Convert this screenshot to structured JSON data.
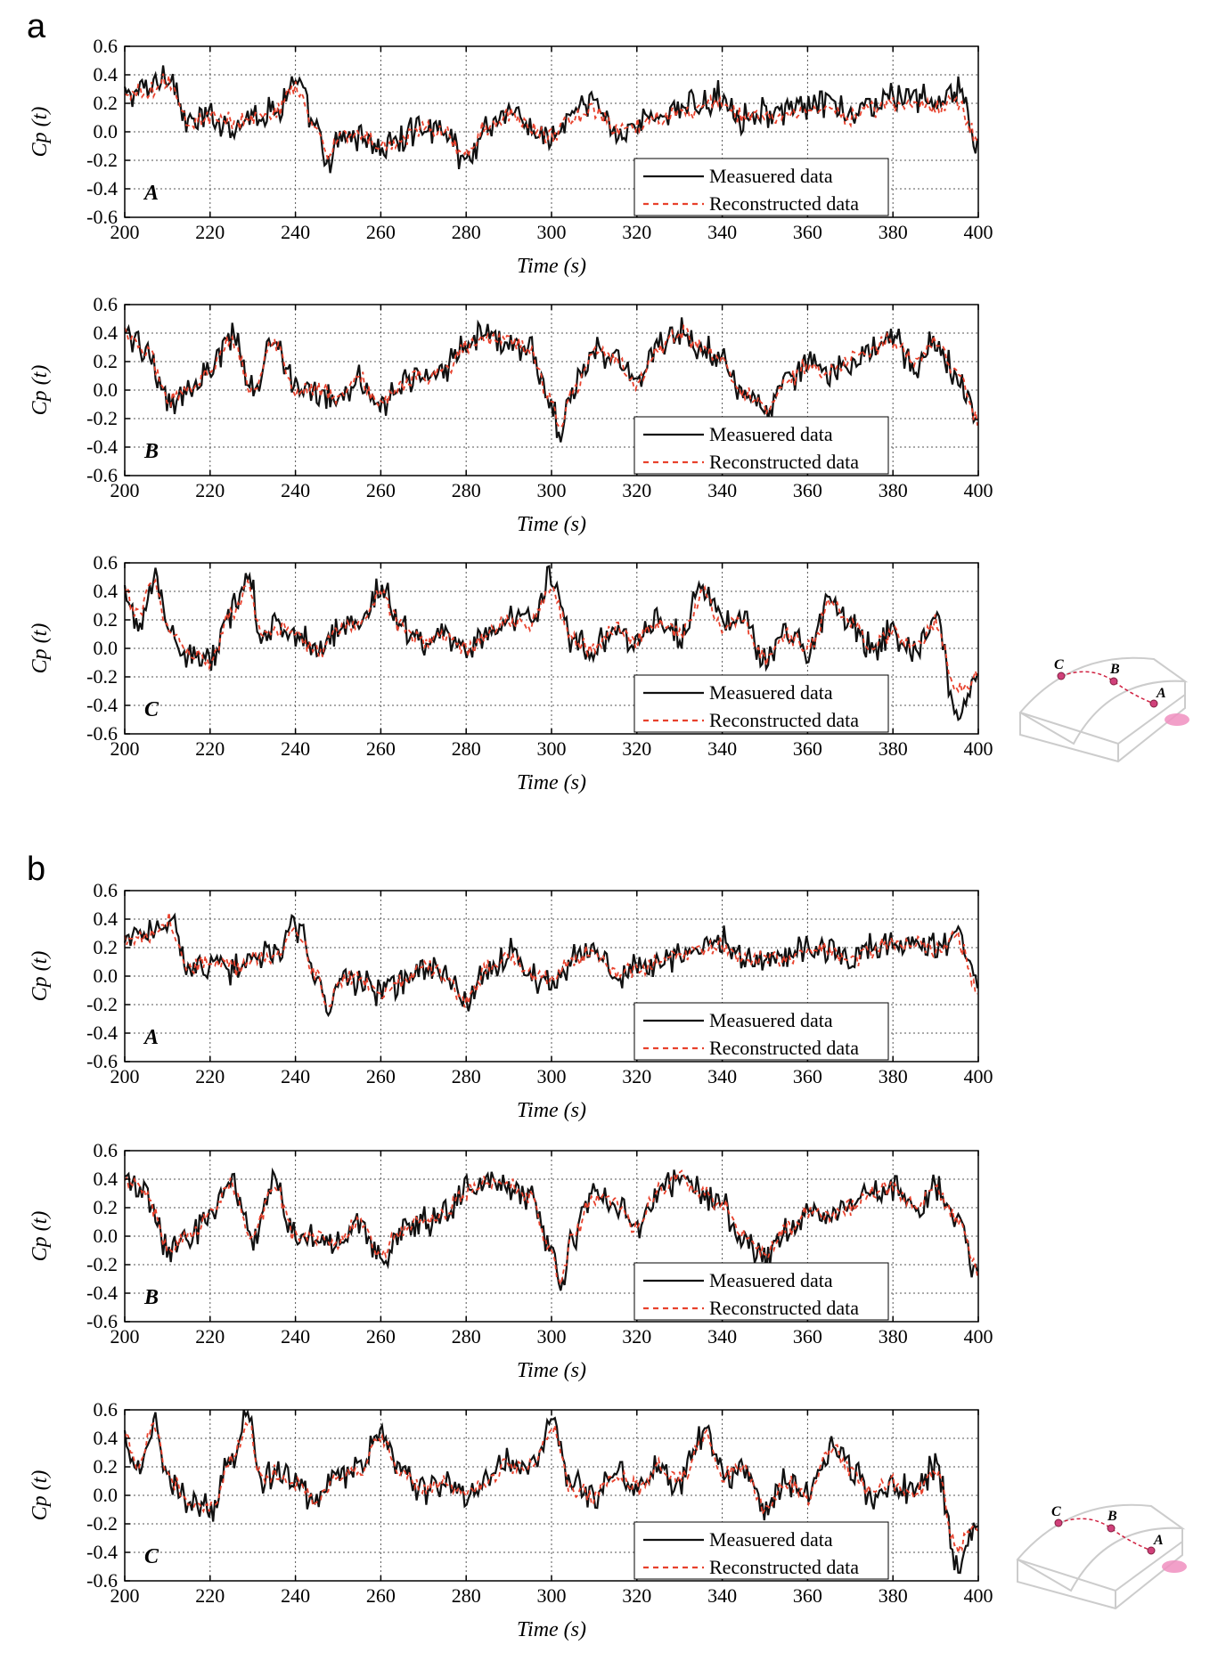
{
  "figure": {
    "panels": [
      "a",
      "b"
    ],
    "inset": {
      "points": [
        "C",
        "B",
        "A"
      ]
    }
  },
  "colors": {
    "measured": "#111111",
    "reconstructed": "#e8412c",
    "grid": "#555555",
    "inset_points": "#d0407a",
    "inset_wind": "#f08fc0"
  },
  "chart_data": [
    {
      "type": "line",
      "panel": "a",
      "subplot_label": "A",
      "xlabel": "Time (s)",
      "ylabel": "Cp (t)",
      "xlim": [
        200,
        400
      ],
      "ylim": [
        -0.6,
        0.6
      ],
      "xticks": [
        200,
        220,
        240,
        260,
        280,
        300,
        320,
        340,
        360,
        380,
        400
      ],
      "yticks": [
        "0.6",
        "0.4",
        "0.2",
        "0.0",
        "-0.2",
        "-0.4",
        "-0.6"
      ],
      "grid": true,
      "legend_position": "bottom-right",
      "x": [
        200,
        205,
        210,
        215,
        220,
        225,
        230,
        235,
        240,
        245,
        248,
        250,
        255,
        260,
        265,
        270,
        275,
        280,
        285,
        290,
        295,
        300,
        305,
        310,
        315,
        320,
        325,
        330,
        335,
        340,
        345,
        350,
        355,
        360,
        365,
        370,
        375,
        380,
        385,
        390,
        395,
        400
      ],
      "series": [
        {
          "name": "Measuered data",
          "style": "solid",
          "values": [
            0.25,
            0.3,
            0.42,
            0.05,
            0.1,
            0.05,
            0.12,
            0.15,
            0.35,
            0.0,
            -0.28,
            -0.05,
            -0.02,
            -0.12,
            -0.05,
            0.05,
            0.0,
            -0.2,
            0.05,
            0.15,
            0.02,
            -0.05,
            0.12,
            0.2,
            0.0,
            0.05,
            0.12,
            0.15,
            0.2,
            0.25,
            0.1,
            0.15,
            0.12,
            0.18,
            0.2,
            0.1,
            0.2,
            0.25,
            0.25,
            0.2,
            0.3,
            -0.1
          ]
        },
        {
          "name": "Reconstructed data",
          "style": "dashed",
          "values": [
            0.25,
            0.28,
            0.36,
            0.07,
            0.1,
            0.07,
            0.1,
            0.14,
            0.3,
            0.02,
            -0.18,
            -0.03,
            -0.01,
            -0.1,
            -0.04,
            0.04,
            0.0,
            -0.16,
            0.04,
            0.12,
            0.03,
            -0.03,
            0.1,
            0.16,
            0.02,
            0.05,
            0.1,
            0.13,
            0.17,
            0.2,
            0.1,
            0.13,
            0.11,
            0.15,
            0.16,
            0.1,
            0.16,
            0.2,
            0.2,
            0.17,
            0.22,
            -0.05
          ]
        }
      ]
    },
    {
      "type": "line",
      "panel": "a",
      "subplot_label": "B",
      "xlabel": "Time (s)",
      "ylabel": "Cp (t)",
      "xlim": [
        200,
        400
      ],
      "ylim": [
        -0.6,
        0.6
      ],
      "xticks": [
        200,
        220,
        240,
        260,
        280,
        300,
        320,
        340,
        360,
        380,
        400
      ],
      "yticks": [
        "0.6",
        "0.4",
        "0.2",
        "0.0",
        "-0.2",
        "-0.4",
        "-0.6"
      ],
      "grid": true,
      "legend_position": "bottom-right",
      "x": [
        200,
        205,
        210,
        215,
        220,
        225,
        230,
        235,
        240,
        245,
        250,
        255,
        260,
        265,
        270,
        275,
        280,
        285,
        290,
        295,
        300,
        302,
        305,
        310,
        315,
        320,
        325,
        330,
        335,
        340,
        345,
        350,
        355,
        360,
        365,
        370,
        375,
        380,
        385,
        390,
        395,
        400
      ],
      "series": [
        {
          "name": "Measuered data",
          "style": "solid",
          "values": [
            0.4,
            0.3,
            -0.1,
            0.0,
            0.15,
            0.38,
            0.0,
            0.38,
            0.0,
            0.0,
            -0.05,
            0.1,
            -0.15,
            0.05,
            0.1,
            0.15,
            0.32,
            0.38,
            0.35,
            0.28,
            -0.1,
            -0.35,
            0.0,
            0.3,
            0.22,
            0.05,
            0.32,
            0.42,
            0.3,
            0.2,
            0.0,
            -0.15,
            0.05,
            0.18,
            0.12,
            0.2,
            0.3,
            0.35,
            0.15,
            0.35,
            0.1,
            -0.25
          ]
        },
        {
          "name": "Reconstructed data",
          "style": "dashed",
          "values": [
            0.4,
            0.3,
            -0.08,
            0.0,
            0.14,
            0.34,
            0.0,
            0.34,
            0.0,
            0.0,
            -0.04,
            0.09,
            -0.12,
            0.05,
            0.09,
            0.14,
            0.3,
            0.38,
            0.34,
            0.27,
            -0.08,
            -0.3,
            0.0,
            0.28,
            0.22,
            0.05,
            0.3,
            0.4,
            0.3,
            0.2,
            0.0,
            -0.12,
            0.05,
            0.17,
            0.12,
            0.2,
            0.28,
            0.34,
            0.2,
            0.33,
            0.12,
            -0.22
          ]
        }
      ]
    },
    {
      "type": "line",
      "panel": "a",
      "subplot_label": "C",
      "xlabel": "Time (s)",
      "ylabel": "Cp (t)",
      "xlim": [
        200,
        400
      ],
      "ylim": [
        -0.6,
        0.6
      ],
      "xticks": [
        200,
        220,
        240,
        260,
        280,
        300,
        320,
        340,
        360,
        380,
        400
      ],
      "yticks": [
        "0.6",
        "0.4",
        "0.2",
        "0.0",
        "-0.2",
        "-0.4",
        "-0.6"
      ],
      "grid": true,
      "legend_position": "bottom-right",
      "x": [
        200,
        203,
        207,
        210,
        215,
        220,
        225,
        229,
        232,
        235,
        240,
        245,
        250,
        255,
        260,
        265,
        270,
        275,
        280,
        285,
        290,
        295,
        300,
        305,
        310,
        315,
        320,
        325,
        330,
        336,
        340,
        345,
        350,
        355,
        360,
        366,
        370,
        375,
        380,
        385,
        390,
        395,
        400
      ],
      "series": [
        {
          "name": "Measuered data",
          "style": "solid",
          "values": [
            0.4,
            0.2,
            0.48,
            0.15,
            -0.05,
            -0.1,
            0.25,
            0.55,
            0.1,
            0.15,
            0.1,
            -0.05,
            0.15,
            0.2,
            0.42,
            0.15,
            0.05,
            0.1,
            0.0,
            0.1,
            0.22,
            0.2,
            0.5,
            0.05,
            0.0,
            0.15,
            0.05,
            0.2,
            0.1,
            0.45,
            0.15,
            0.2,
            -0.1,
            0.1,
            0.0,
            0.35,
            0.2,
            0.0,
            0.1,
            0.0,
            0.2,
            -0.45,
            -0.2
          ]
        },
        {
          "name": "Reconstructed data",
          "style": "dashed",
          "values": [
            0.38,
            0.25,
            0.44,
            0.15,
            -0.04,
            -0.08,
            0.22,
            0.45,
            0.1,
            0.14,
            0.1,
            -0.03,
            0.13,
            0.18,
            0.38,
            0.14,
            0.05,
            0.1,
            0.0,
            0.09,
            0.2,
            0.19,
            0.42,
            0.05,
            0.01,
            0.14,
            0.05,
            0.18,
            0.1,
            0.38,
            0.15,
            0.18,
            -0.08,
            0.1,
            0.01,
            0.33,
            0.18,
            0.02,
            0.1,
            0.01,
            0.18,
            -0.3,
            -0.18
          ]
        }
      ]
    },
    {
      "type": "line",
      "panel": "b",
      "subplot_label": "A",
      "xlabel": "Time (s)",
      "ylabel": "Cp (t)",
      "xlim": [
        200,
        400
      ],
      "ylim": [
        -0.6,
        0.6
      ],
      "xticks": [
        200,
        220,
        240,
        260,
        280,
        300,
        320,
        340,
        360,
        380,
        400
      ],
      "yticks": [
        "0.6",
        "0.4",
        "0.2",
        "0.0",
        "-0.2",
        "-0.4",
        "-0.6"
      ],
      "grid": true,
      "legend_position": "bottom-right",
      "x": [
        200,
        205,
        210,
        215,
        220,
        225,
        230,
        235,
        240,
        245,
        248,
        250,
        255,
        260,
        265,
        270,
        275,
        280,
        285,
        290,
        295,
        300,
        305,
        310,
        315,
        320,
        325,
        330,
        335,
        340,
        345,
        350,
        355,
        360,
        365,
        370,
        375,
        380,
        385,
        390,
        395,
        400
      ],
      "series": [
        {
          "name": "Measuered data",
          "style": "solid",
          "values": [
            0.25,
            0.3,
            0.42,
            0.05,
            0.1,
            0.05,
            0.12,
            0.15,
            0.35,
            0.0,
            -0.28,
            -0.05,
            -0.02,
            -0.12,
            -0.05,
            0.05,
            0.0,
            -0.2,
            0.05,
            0.15,
            0.02,
            -0.05,
            0.12,
            0.2,
            0.0,
            0.05,
            0.12,
            0.15,
            0.2,
            0.25,
            0.1,
            0.15,
            0.12,
            0.18,
            0.2,
            0.1,
            0.2,
            0.25,
            0.25,
            0.2,
            0.3,
            -0.1
          ]
        },
        {
          "name": "Reconstructed data",
          "style": "dashed",
          "values": [
            0.26,
            0.29,
            0.39,
            0.06,
            0.1,
            0.06,
            0.11,
            0.15,
            0.33,
            0.01,
            -0.22,
            -0.04,
            -0.02,
            -0.11,
            -0.05,
            0.05,
            0.0,
            -0.18,
            0.05,
            0.14,
            0.02,
            -0.04,
            0.11,
            0.18,
            0.01,
            0.05,
            0.11,
            0.14,
            0.18,
            0.23,
            0.1,
            0.14,
            0.12,
            0.17,
            0.18,
            0.1,
            0.18,
            0.23,
            0.23,
            0.19,
            0.26,
            -0.08
          ]
        }
      ]
    },
    {
      "type": "line",
      "panel": "b",
      "subplot_label": "B",
      "xlabel": "Time (s)",
      "ylabel": "Cp (t)",
      "xlim": [
        200,
        400
      ],
      "ylim": [
        -0.6,
        0.6
      ],
      "xticks": [
        200,
        220,
        240,
        260,
        280,
        300,
        320,
        340,
        360,
        380,
        400
      ],
      "yticks": [
        "0.6",
        "0.4",
        "0.2",
        "0.0",
        "-0.2",
        "-0.4",
        "-0.6"
      ],
      "grid": true,
      "legend_position": "bottom-right",
      "x": [
        200,
        205,
        210,
        215,
        220,
        225,
        230,
        235,
        240,
        245,
        250,
        255,
        260,
        265,
        270,
        275,
        280,
        285,
        290,
        295,
        300,
        302,
        305,
        310,
        315,
        320,
        325,
        330,
        335,
        340,
        345,
        350,
        355,
        360,
        365,
        370,
        375,
        380,
        385,
        390,
        395,
        400
      ],
      "series": [
        {
          "name": "Measuered data",
          "style": "solid",
          "values": [
            0.4,
            0.3,
            -0.1,
            0.0,
            0.15,
            0.38,
            0.0,
            0.38,
            0.0,
            0.0,
            -0.05,
            0.1,
            -0.15,
            0.05,
            0.1,
            0.15,
            0.32,
            0.38,
            0.35,
            0.28,
            -0.1,
            -0.35,
            0.0,
            0.3,
            0.22,
            0.05,
            0.32,
            0.42,
            0.3,
            0.2,
            0.0,
            -0.15,
            0.05,
            0.18,
            0.12,
            0.2,
            0.3,
            0.35,
            0.15,
            0.35,
            0.1,
            -0.25
          ]
        },
        {
          "name": "Reconstructed data",
          "style": "dashed",
          "values": [
            0.4,
            0.3,
            -0.09,
            0.0,
            0.15,
            0.36,
            0.0,
            0.36,
            0.0,
            0.0,
            -0.05,
            0.1,
            -0.14,
            0.05,
            0.1,
            0.15,
            0.31,
            0.38,
            0.35,
            0.28,
            -0.09,
            -0.33,
            0.0,
            0.29,
            0.22,
            0.05,
            0.31,
            0.41,
            0.3,
            0.2,
            0.0,
            -0.14,
            0.05,
            0.18,
            0.12,
            0.2,
            0.3,
            0.35,
            0.2,
            0.34,
            0.11,
            -0.23
          ]
        }
      ]
    },
    {
      "type": "line",
      "panel": "b",
      "subplot_label": "C",
      "xlabel": "Time (s)",
      "ylabel": "Cp (t)",
      "xlim": [
        200,
        400
      ],
      "ylim": [
        -0.6,
        0.6
      ],
      "xticks": [
        200,
        220,
        240,
        260,
        280,
        300,
        320,
        340,
        360,
        380,
        400
      ],
      "yticks": [
        "0.6",
        "0.4",
        "0.2",
        "0.0",
        "-0.2",
        "-0.4",
        "-0.6"
      ],
      "grid": true,
      "legend_position": "bottom-right",
      "x": [
        200,
        203,
        207,
        210,
        215,
        220,
        225,
        229,
        232,
        235,
        240,
        245,
        250,
        255,
        260,
        265,
        270,
        275,
        280,
        285,
        290,
        295,
        300,
        305,
        310,
        315,
        320,
        325,
        330,
        336,
        340,
        345,
        350,
        355,
        360,
        366,
        370,
        375,
        380,
        385,
        390,
        395,
        400
      ],
      "series": [
        {
          "name": "Measuered data",
          "style": "solid",
          "values": [
            0.4,
            0.2,
            0.48,
            0.15,
            -0.05,
            -0.1,
            0.25,
            0.55,
            0.1,
            0.15,
            0.1,
            -0.05,
            0.15,
            0.2,
            0.42,
            0.15,
            0.05,
            0.1,
            0.0,
            0.1,
            0.22,
            0.2,
            0.5,
            0.05,
            0.0,
            0.15,
            0.05,
            0.2,
            0.1,
            0.45,
            0.15,
            0.2,
            -0.1,
            0.1,
            0.0,
            0.35,
            0.2,
            0.0,
            0.1,
            0.0,
            0.2,
            -0.45,
            -0.2
          ]
        },
        {
          "name": "Reconstructed data",
          "style": "dashed",
          "values": [
            0.39,
            0.23,
            0.46,
            0.15,
            -0.05,
            -0.09,
            0.24,
            0.5,
            0.1,
            0.15,
            0.1,
            -0.04,
            0.14,
            0.19,
            0.4,
            0.15,
            0.05,
            0.1,
            0.0,
            0.1,
            0.21,
            0.2,
            0.46,
            0.05,
            0.0,
            0.15,
            0.05,
            0.19,
            0.1,
            0.41,
            0.15,
            0.19,
            -0.09,
            0.1,
            0.0,
            0.34,
            0.19,
            0.01,
            0.1,
            0.0,
            0.19,
            -0.38,
            -0.19
          ]
        }
      ]
    }
  ]
}
